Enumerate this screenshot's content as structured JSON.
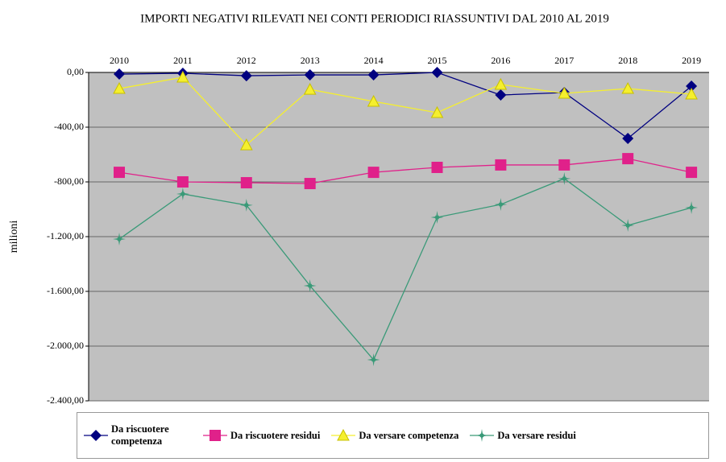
{
  "chart_data": {
    "type": "line",
    "title": "IMPORTI NEGATIVI RILEVATI NEI CONTI PERIODICI RIASSUNTIVI DAL 2010 AL 2019",
    "y_label": "milioni",
    "categories": [
      "2010",
      "2011",
      "2012",
      "2013",
      "2014",
      "2015",
      "2016",
      "2017",
      "2018",
      "2019"
    ],
    "ylim": [
      -2400,
      0
    ],
    "yticks": [
      {
        "value": -2400,
        "label": "-2.400,00"
      },
      {
        "value": -2000,
        "label": "-2.000,00"
      },
      {
        "value": -1600,
        "label": "-1.600,00"
      },
      {
        "value": -1200,
        "label": "-1.200,00"
      },
      {
        "value": -800,
        "label": "-800,00"
      },
      {
        "value": -400,
        "label": "-400,00"
      },
      {
        "value": 0,
        "label": "0,00"
      }
    ],
    "grid": true,
    "legend": "bottom",
    "series": [
      {
        "name": "Da riscuotere competenza",
        "color": "#000080",
        "marker": "diamond",
        "values": [
          -12,
          -6,
          -24,
          -18,
          -18,
          0,
          -165,
          -147,
          -482,
          -100
        ]
      },
      {
        "name": "Da riscuotere residui",
        "color": "#e0218a",
        "marker": "square",
        "values": [
          -730,
          -800,
          -806,
          -812,
          -730,
          -694,
          -676,
          -676,
          -630,
          -730
        ]
      },
      {
        "name": "Da versare competenza",
        "color": "#f5ef2e",
        "marker": "triangle",
        "values": [
          -118,
          -35,
          -530,
          -124,
          -212,
          -294,
          -88,
          -153,
          -118,
          -159
        ]
      },
      {
        "name": "Da versare residui",
        "color": "#3a9a78",
        "marker": "star",
        "values": [
          -1218,
          -888,
          -970,
          -1559,
          -2100,
          -1059,
          -965,
          -776,
          -1118,
          -988
        ]
      }
    ]
  }
}
